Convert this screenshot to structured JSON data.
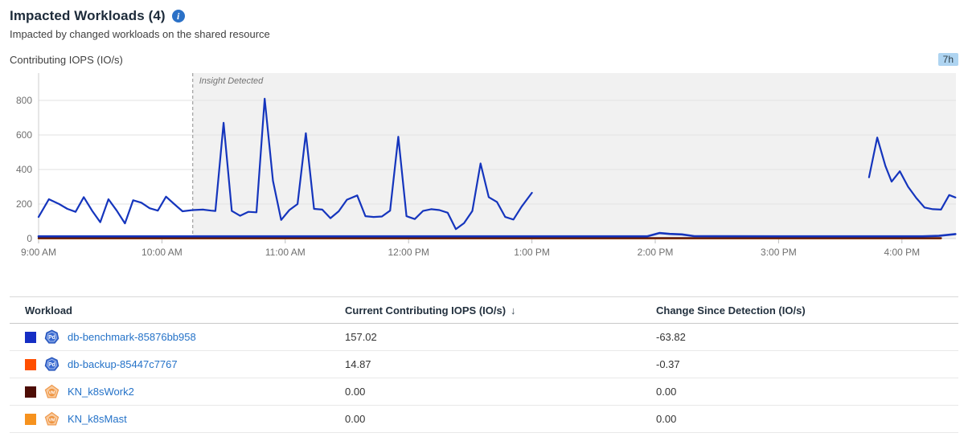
{
  "header": {
    "title": "Impacted Workloads (4)",
    "subtitle": "Impacted by changed workloads on the shared resource"
  },
  "icons": {
    "info": "i",
    "sort_desc": "↓"
  },
  "chart": {
    "label": "Contributing IOPS (IO/s)",
    "time_range_badge": "7h"
  },
  "chart_data": {
    "type": "line",
    "title": "Contributing IOPS (IO/s)",
    "ylabel": "IOPS (IO/s)",
    "ylim": [
      0,
      880
    ],
    "y_ticks": [
      0,
      200,
      400,
      600,
      800
    ],
    "x_axis": {
      "labels": [
        "9:00 AM",
        "10:00 AM",
        "11:00 AM",
        "12:00 PM",
        "1:00 PM",
        "2:00 PM",
        "3:00 PM",
        "4:00 PM"
      ],
      "start_minute": 0,
      "minutes_per_label": 60
    },
    "annotation": {
      "label": "Insight Detected",
      "at_minute": 75
    },
    "grid": true,
    "legend": "none",
    "series": [
      {
        "name": "KN_k8sMast",
        "color": "#f6921e",
        "width": 2.4,
        "segments": [
          [
            [
              0,
              1
            ],
            [
              439,
              1
            ]
          ]
        ]
      },
      {
        "name": "KN_k8sWork2",
        "color": "#5a150a",
        "width": 2.4,
        "segments": [
          [
            [
              0,
              3
            ],
            [
              439,
              3
            ]
          ]
        ]
      },
      {
        "name": "db-backup-85447c7767",
        "color": "#1535bd",
        "width": 2.6,
        "segments": [
          [
            [
              0,
              13
            ],
            [
              60,
              13
            ],
            [
              120,
              13
            ],
            [
              180,
              13
            ],
            [
              240,
              13
            ],
            [
              296,
              13
            ],
            [
              302,
              32
            ],
            [
              307,
              27
            ],
            [
              313,
              24
            ],
            [
              319,
              14
            ],
            [
              360,
              13
            ],
            [
              400,
              13
            ],
            [
              430,
              13
            ],
            [
              438,
              16
            ],
            [
              446,
              26
            ]
          ]
        ]
      },
      {
        "name": "db-benchmark-85876bb958",
        "color": "#1535bd",
        "width": 2.2,
        "segments": [
          [
            [
              0,
              125
            ],
            [
              5,
              228
            ],
            [
              10,
              200
            ],
            [
              14,
              172
            ],
            [
              18,
              155
            ],
            [
              22,
              240
            ],
            [
              26,
              162
            ],
            [
              30,
              95
            ],
            [
              34,
              228
            ],
            [
              38,
              162
            ],
            [
              42,
              88
            ],
            [
              46,
              222
            ],
            [
              50,
              208
            ],
            [
              54,
              176
            ],
            [
              58,
              162
            ],
            [
              62,
              243
            ],
            [
              66,
              200
            ],
            [
              70,
              158
            ],
            [
              75,
              165
            ],
            [
              80,
              168
            ],
            [
              84,
              162
            ],
            [
              86,
              160
            ],
            [
              90,
              670
            ],
            [
              94,
              160
            ],
            [
              98,
              132
            ],
            [
              102,
              155
            ],
            [
              106,
              152
            ],
            [
              110,
              810
            ],
            [
              114,
              335
            ],
            [
              118,
              108
            ],
            [
              122,
              165
            ],
            [
              126,
              200
            ],
            [
              130,
              610
            ],
            [
              134,
              172
            ],
            [
              138,
              168
            ],
            [
              142,
              118
            ],
            [
              146,
              158
            ],
            [
              150,
              225
            ],
            [
              155,
              250
            ],
            [
              159,
              130
            ],
            [
              163,
              125
            ],
            [
              167,
              128
            ],
            [
              171,
              162
            ],
            [
              175,
              590
            ],
            [
              179,
              130
            ],
            [
              183,
              113
            ],
            [
              187,
              160
            ],
            [
              191,
              170
            ],
            [
              195,
              165
            ],
            [
              199,
              150
            ],
            [
              203,
              55
            ],
            [
              207,
              90
            ],
            [
              211,
              160
            ],
            [
              215,
              435
            ],
            [
              219,
              240
            ],
            [
              223,
              212
            ],
            [
              227,
              125
            ],
            [
              231,
              110
            ],
            [
              235,
              185
            ],
            [
              240,
              265
            ]
          ],
          [
            [
              404,
              355
            ],
            [
              408,
              585
            ],
            [
              412,
              420
            ],
            [
              415,
              330
            ],
            [
              419,
              390
            ],
            [
              423,
              300
            ],
            [
              427,
              235
            ],
            [
              431,
              180
            ],
            [
              435,
              170
            ],
            [
              439,
              168
            ],
            [
              443,
              252
            ],
            [
              446,
              238
            ]
          ]
        ]
      }
    ]
  },
  "table": {
    "columns": [
      {
        "label": "Workload"
      },
      {
        "label": "Current Contributing IOPS (IO/s)",
        "sorted": "desc"
      },
      {
        "label": "Change Since Detection (IO/s)"
      }
    ],
    "rows": [
      {
        "swatch": "#152ec4",
        "badge": "Pd",
        "name": "db-benchmark-85876bb958",
        "current": "157.02",
        "change": "-63.82"
      },
      {
        "swatch": "#ff4e00",
        "badge": "Pd",
        "name": "db-backup-85447c7767",
        "current": "14.87",
        "change": "-0.37"
      },
      {
        "swatch": "#4d0d05",
        "badge": "VM",
        "name": "KN_k8sWork2",
        "current": "0.00",
        "change": "0.00"
      },
      {
        "swatch": "#f6921e",
        "badge": "VM",
        "name": "KN_k8sMast",
        "current": "0.00",
        "change": "0.00"
      }
    ]
  }
}
